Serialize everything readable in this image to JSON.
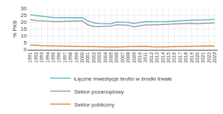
{
  "chart_data": {
    "type": "line",
    "ylabel": "% PKB",
    "x": [
      1991,
      1992,
      1993,
      1994,
      1995,
      1996,
      1997,
      1998,
      1999,
      2000,
      2001,
      2002,
      2003,
      2004,
      2005,
      2006,
      2007,
      2008,
      2009,
      2010,
      2011,
      2012,
      2013,
      2014,
      2015,
      2016,
      2017,
      2018,
      2019,
      2020,
      2021,
      2022,
      2023
    ],
    "series": [
      {
        "name": "Łączne inwestycje brutto w środki trwałe",
        "color": "#5ab4c8",
        "values": [
          25.2,
          24.7,
          24.0,
          23.5,
          23.2,
          23.1,
          23.1,
          23.1,
          23.2,
          23.2,
          20.8,
          19.3,
          18.9,
          18.9,
          18.8,
          20.0,
          20.0,
          19.7,
          18.9,
          19.5,
          20.3,
          20.1,
          20.0,
          20.2,
          20.4,
          20.7,
          21.0,
          21.3,
          21.4,
          21.4,
          21.5,
          21.8,
          21.8
        ]
      },
      {
        "name": "Sektor pozarządowy",
        "color": "#999999",
        "values": [
          21.8,
          21.0,
          20.8,
          20.5,
          20.4,
          20.3,
          20.4,
          20.5,
          20.8,
          20.8,
          17.9,
          16.8,
          16.8,
          17.0,
          17.0,
          18.0,
          17.9,
          17.6,
          16.5,
          17.3,
          17.9,
          17.9,
          18.0,
          18.2,
          18.4,
          18.4,
          18.7,
          18.9,
          19.0,
          18.7,
          18.8,
          19.2,
          19.3
        ]
      },
      {
        "name": "Sektor publiczny",
        "color": "#d4843e",
        "values": [
          3.2,
          3.2,
          2.8,
          2.7,
          2.6,
          2.6,
          2.5,
          2.4,
          2.3,
          2.3,
          2.2,
          2.1,
          2.0,
          1.9,
          1.9,
          1.9,
          2.0,
          2.1,
          2.2,
          2.2,
          2.4,
          2.1,
          1.9,
          1.9,
          2.0,
          2.2,
          2.2,
          2.3,
          2.4,
          2.5,
          2.7,
          2.6,
          2.5
        ]
      }
    ],
    "xlim": [
      1990.5,
      2023.5
    ],
    "xticks": [
      1991,
      1992,
      1993,
      1994,
      1995,
      1996,
      1997,
      1998,
      1999,
      2000,
      2001,
      2002,
      2003,
      2004,
      2005,
      2006,
      2007,
      2008,
      2009,
      2010,
      2011,
      2012,
      2013,
      2014,
      2015,
      2016,
      2017,
      2018,
      2019,
      2020,
      2021,
      2022,
      2023
    ],
    "ylim": [
      0,
      30
    ],
    "yticks": [
      0,
      5,
      10,
      15,
      20,
      25,
      30
    ],
    "grid": true,
    "legend": "bottom"
  }
}
